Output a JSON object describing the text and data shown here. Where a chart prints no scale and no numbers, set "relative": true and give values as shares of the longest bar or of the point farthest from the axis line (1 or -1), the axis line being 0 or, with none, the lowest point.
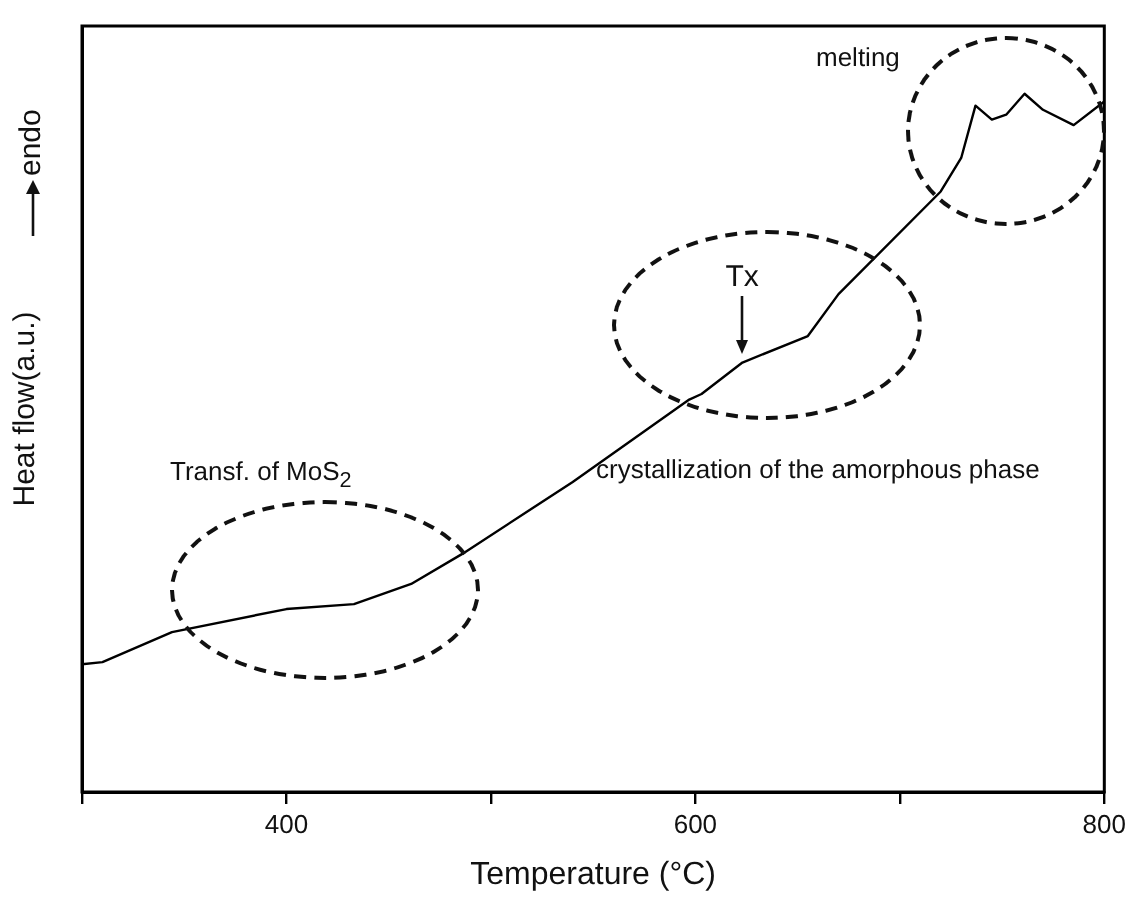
{
  "chart_data": {
    "type": "line",
    "relative": true,
    "xlabel": "Temperature (°C)",
    "ylabel": "Heat flow(a.u.)",
    "x": [
      300,
      310,
      344,
      400,
      433,
      461,
      486,
      540,
      597,
      603,
      623,
      655,
      670,
      720,
      730,
      737,
      745,
      752,
      761,
      770,
      785,
      800
    ],
    "series": [
      {
        "color": "#000000",
        "values": [
          0.183,
          0.186,
          0.229,
          0.262,
          0.269,
          0.298,
          0.341,
          0.444,
          0.562,
          0.57,
          0.615,
          0.653,
          0.713,
          0.86,
          0.908,
          0.983,
          0.963,
          0.97,
          1.0,
          0.977,
          0.955,
          0.989
        ]
      }
    ],
    "xlim": [
      300,
      800
    ],
    "xticks": [
      {
        "value": 300,
        "label": null
      },
      400,
      {
        "value": 500,
        "label": null
      },
      600,
      {
        "value": 700,
        "label": null
      },
      800
    ],
    "annotations": [
      "Transf. of MoS$_{2}$",
      "crystallization of the amorphous phase",
      "melting",
      "endo",
      {
        "text": "Tx",
        "x": 623,
        "y": 0.615
      }
    ],
    "grid": false,
    "legend": false,
    "marker": "none",
    "line_style": "solid"
  }
}
